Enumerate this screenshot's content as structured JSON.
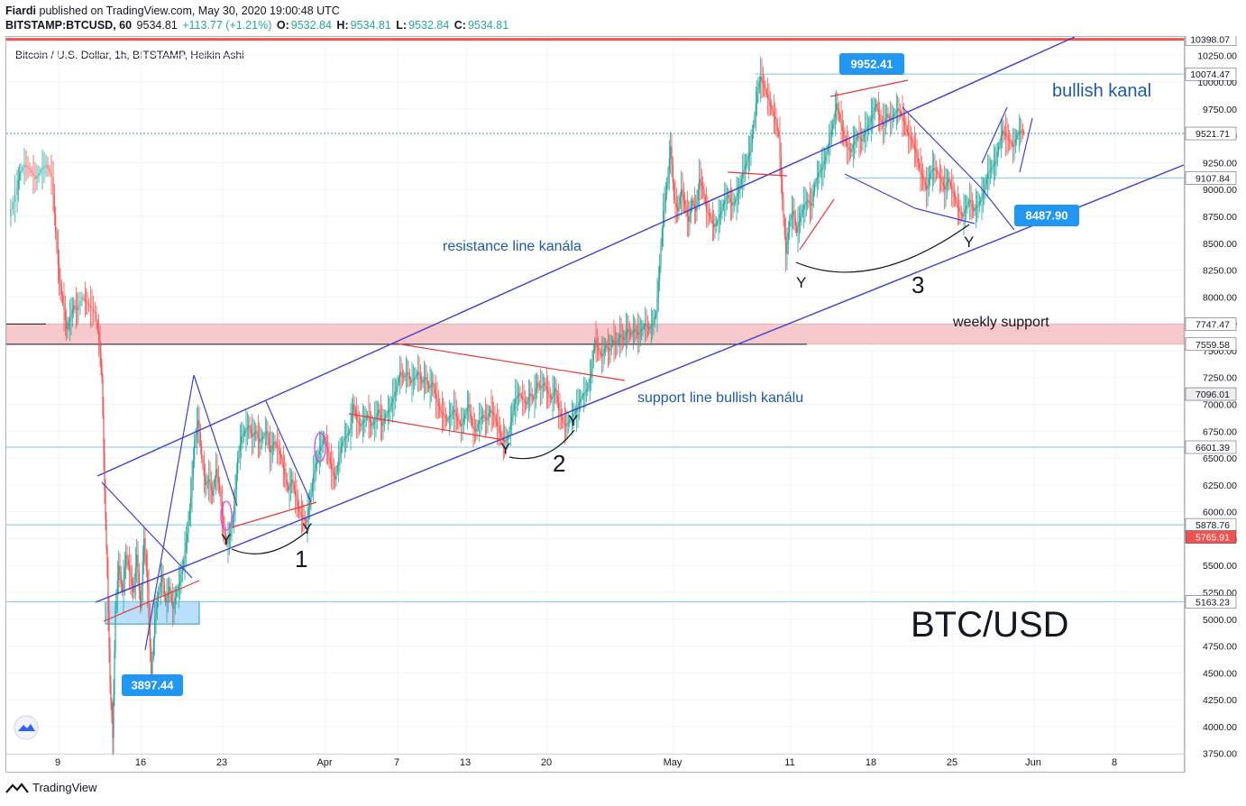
{
  "header": {
    "line1_author": "Fiardi",
    "line1_rest": "published on TradingView.com, May 30, 2020 19:00:48 UTC",
    "symbol": "BITSTAMP:BTCUSD, 60",
    "last": "9534.81",
    "change": "+113.77 (+1.21%)",
    "o_label": "O:",
    "o_val": "9532.84",
    "h_label": "H:",
    "h_val": "9534.81",
    "l_label": "L:",
    "l_val": "9532.84",
    "c_label": "C:",
    "c_val": "9534.81"
  },
  "chart_title": "Bitcoin / U.S. Dollar, 1h, BITSTAMP, Heikin Ashi",
  "footer_brand": "TradingView",
  "colors": {
    "up": "#26a69a",
    "down": "#ef5350",
    "channel": "#3f3fcf",
    "red_line": "#e53935",
    "price_blue": "#2196f3",
    "support_zone": "#f6c9cc",
    "demand_zone": "#bbdefb",
    "annot_text": "#1e5aa8",
    "magenta": "#e040fb"
  },
  "annotations": {
    "bullish": "bullish kanal",
    "resistance": "resistance line kanála",
    "support_line": "support line bullish kanálu",
    "weekly": "weekly support",
    "pair": "BTC/USD",
    "n1": "1",
    "n2": "2",
    "n3": "3",
    "y": "Y"
  },
  "chart_data": {
    "type": "line",
    "title": "Bitcoin / U.S. Dollar, 1h, BITSTAMP, Heikin Ashi",
    "xlabel": "",
    "ylabel": "",
    "ylim": [
      3580,
      10420
    ],
    "x_ticks": [
      "9",
      "16",
      "23",
      "Apr",
      "7",
      "13",
      "20",
      "May",
      "11",
      "18",
      "25",
      "Jun",
      "8"
    ],
    "y_ticks": [
      "10250.00",
      "10000.00",
      "9750.00",
      "9500.00",
      "9250.00",
      "9000.00",
      "8750.00",
      "8500.00",
      "8250.00",
      "8000.00",
      "7750.00",
      "7500.00",
      "7250.00",
      "7000.00",
      "6750.00",
      "6500.00",
      "6250.00",
      "6000.00",
      "5750.00",
      "5500.00",
      "5250.00",
      "5000.00",
      "4750.00",
      "4500.00",
      "4250.00",
      "4000.00",
      "3750.00"
    ],
    "price_labels": [
      {
        "value": "10398.07",
        "y": 10398.07,
        "bg": "#ffffff",
        "fg": "#131722"
      },
      {
        "value": "10074.47",
        "y": 10074.47,
        "bg": "#ffffff",
        "fg": "#131722"
      },
      {
        "value": "9521.71",
        "y": 9521.71,
        "bg": "#ffffff",
        "fg": "#131722"
      },
      {
        "value": "9107.84",
        "y": 9107.84,
        "bg": "#ffffff",
        "fg": "#131722"
      },
      {
        "value": "7747.47",
        "y": 7747.47,
        "bg": "#ffffff",
        "fg": "#131722"
      },
      {
        "value": "7559.58",
        "y": 7559.58,
        "bg": "#ffffff",
        "fg": "#131722"
      },
      {
        "value": "7096.01",
        "y": 7096.01,
        "bg": "#eeeeee",
        "fg": "#131722"
      },
      {
        "value": "6601.39",
        "y": 6601.39,
        "bg": "#ffffff",
        "fg": "#131722"
      },
      {
        "value": "5878.76",
        "y": 5878.76,
        "bg": "#ffffff",
        "fg": "#131722"
      },
      {
        "value": "5765.91",
        "y": 5765.91,
        "bg": "#ef5350",
        "fg": "#ffffff"
      },
      {
        "value": "5163.23",
        "y": 5163.23,
        "bg": "#ffffff",
        "fg": "#131722"
      }
    ],
    "callouts": [
      {
        "text": "9952.41",
        "y": 9952.41
      },
      {
        "text": "8487.90",
        "y": 8487.9
      },
      {
        "text": "3897.44",
        "y": 3897.44
      }
    ],
    "path_points": [
      [
        5,
        8750
      ],
      [
        12,
        8950
      ],
      [
        16,
        9150
      ],
      [
        22,
        9230
      ],
      [
        28,
        9180
      ],
      [
        34,
        9100
      ],
      [
        40,
        9180
      ],
      [
        46,
        9230
      ],
      [
        52,
        9120
      ],
      [
        56,
        8600
      ],
      [
        60,
        8150
      ],
      [
        64,
        7950
      ],
      [
        68,
        7700
      ],
      [
        72,
        7800
      ],
      [
        76,
        7920
      ],
      [
        80,
        7880
      ],
      [
        86,
        8000
      ],
      [
        90,
        7950
      ],
      [
        95,
        7900
      ],
      [
        100,
        7850
      ],
      [
        104,
        7600
      ],
      [
        107,
        7250
      ],
      [
        110,
        6200
      ],
      [
        113,
        5400
      ],
      [
        116,
        4400
      ],
      [
        119,
        3897
      ],
      [
        122,
        5100
      ],
      [
        126,
        5500
      ],
      [
        130,
        5250
      ],
      [
        134,
        5600
      ],
      [
        138,
        5450
      ],
      [
        142,
        5250
      ],
      [
        146,
        5600
      ],
      [
        150,
        5100
      ],
      [
        154,
        5750
      ],
      [
        158,
        5300
      ],
      [
        162,
        4450
      ],
      [
        166,
        5000
      ],
      [
        170,
        5250
      ],
      [
        174,
        5400
      ],
      [
        178,
        5150
      ],
      [
        182,
        5300
      ],
      [
        186,
        5100
      ],
      [
        190,
        5250
      ],
      [
        194,
        5350
      ],
      [
        198,
        5550
      ],
      [
        202,
        5800
      ],
      [
        206,
        6150
      ],
      [
        210,
        6650
      ],
      [
        214,
        6850
      ],
      [
        218,
        6500
      ],
      [
        222,
        6250
      ],
      [
        226,
        6300
      ],
      [
        230,
        6150
      ],
      [
        234,
        6400
      ],
      [
        238,
        6200
      ],
      [
        242,
        5850
      ],
      [
        246,
        5700
      ],
      [
        250,
        5800
      ],
      [
        254,
        6050
      ],
      [
        258,
        6500
      ],
      [
        262,
        6700
      ],
      [
        266,
        6750
      ],
      [
        270,
        6800
      ],
      [
        274,
        6700
      ],
      [
        278,
        6750
      ],
      [
        282,
        6650
      ],
      [
        286,
        6700
      ],
      [
        290,
        6750
      ],
      [
        294,
        6550
      ],
      [
        298,
        6650
      ],
      [
        302,
        6600
      ],
      [
        306,
        6500
      ],
      [
        310,
        6350
      ],
      [
        314,
        6200
      ],
      [
        318,
        6300
      ],
      [
        322,
        6150
      ],
      [
        326,
        6000
      ],
      [
        330,
        5950
      ],
      [
        334,
        5900
      ],
      [
        338,
        6100
      ],
      [
        342,
        6350
      ],
      [
        346,
        6500
      ],
      [
        350,
        6600
      ],
      [
        354,
        6700
      ],
      [
        358,
        6550
      ],
      [
        362,
        6400
      ],
      [
        366,
        6300
      ],
      [
        370,
        6500
      ],
      [
        374,
        6650
      ],
      [
        378,
        6700
      ],
      [
        382,
        6750
      ],
      [
        386,
        7000
      ],
      [
        390,
        6850
      ],
      [
        394,
        6800
      ],
      [
        398,
        6850
      ],
      [
        402,
        6900
      ],
      [
        406,
        6800
      ],
      [
        410,
        6850
      ],
      [
        414,
        6950
      ],
      [
        418,
        6800
      ],
      [
        422,
        6900
      ],
      [
        426,
        6950
      ],
      [
        430,
        7050
      ],
      [
        434,
        7150
      ],
      [
        438,
        7300
      ],
      [
        442,
        7250
      ],
      [
        446,
        7300
      ],
      [
        450,
        7200
      ],
      [
        454,
        7250
      ],
      [
        458,
        7300
      ],
      [
        462,
        7200
      ],
      [
        466,
        7250
      ],
      [
        470,
        7150
      ],
      [
        474,
        7200
      ],
      [
        478,
        7050
      ],
      [
        482,
        6950
      ],
      [
        486,
        6900
      ],
      [
        490,
        6850
      ],
      [
        494,
        6900
      ],
      [
        498,
        6950
      ],
      [
        502,
        6850
      ],
      [
        506,
        6800
      ],
      [
        510,
        6900
      ],
      [
        514,
        7000
      ],
      [
        518,
        6800
      ],
      [
        522,
        6750
      ],
      [
        526,
        6850
      ],
      [
        530,
        6900
      ],
      [
        534,
        6850
      ],
      [
        538,
        6950
      ],
      [
        542,
        6900
      ],
      [
        546,
        6800
      ],
      [
        550,
        6700
      ],
      [
        554,
        6650
      ],
      [
        558,
        6700
      ],
      [
        562,
        6900
      ],
      [
        566,
        7050
      ],
      [
        570,
        7100
      ],
      [
        574,
        7050
      ],
      [
        578,
        7000
      ],
      [
        582,
        7100
      ],
      [
        586,
        7050
      ],
      [
        590,
        7200
      ],
      [
        594,
        7150
      ],
      [
        598,
        7200
      ],
      [
        602,
        7100
      ],
      [
        606,
        7050
      ],
      [
        610,
        7150
      ],
      [
        614,
        6950
      ],
      [
        618,
        6850
      ],
      [
        622,
        6800
      ],
      [
        626,
        6850
      ],
      [
        630,
        6900
      ],
      [
        634,
        6950
      ],
      [
        638,
        7050
      ],
      [
        642,
        7100
      ],
      [
        646,
        7150
      ],
      [
        650,
        7300
      ],
      [
        654,
        7600
      ],
      [
        658,
        7500
      ],
      [
        662,
        7450
      ],
      [
        666,
        7550
      ],
      [
        670,
        7500
      ],
      [
        674,
        7600
      ],
      [
        678,
        7550
      ],
      [
        682,
        7650
      ],
      [
        686,
        7600
      ],
      [
        690,
        7700
      ],
      [
        694,
        7650
      ],
      [
        698,
        7700
      ],
      [
        702,
        7650
      ],
      [
        706,
        7700
      ],
      [
        710,
        7750
      ],
      [
        714,
        7700
      ],
      [
        718,
        7750
      ],
      [
        722,
        7850
      ],
      [
        726,
        8300
      ],
      [
        730,
        8800
      ],
      [
        734,
        9050
      ],
      [
        738,
        9400
      ],
      [
        742,
        8900
      ],
      [
        746,
        8800
      ],
      [
        750,
        9000
      ],
      [
        754,
        8850
      ],
      [
        758,
        8700
      ],
      [
        762,
        8900
      ],
      [
        766,
        8800
      ],
      [
        770,
        9100
      ],
      [
        774,
        9000
      ],
      [
        778,
        8800
      ],
      [
        782,
        8750
      ],
      [
        786,
        8650
      ],
      [
        790,
        8700
      ],
      [
        794,
        8800
      ],
      [
        798,
        8900
      ],
      [
        802,
        8950
      ],
      [
        806,
        8850
      ],
      [
        810,
        8900
      ],
      [
        814,
        9000
      ],
      [
        818,
        9150
      ],
      [
        822,
        9250
      ],
      [
        826,
        9350
      ],
      [
        830,
        9600
      ],
      [
        834,
        9900
      ],
      [
        838,
        10050
      ],
      [
        842,
        9950
      ],
      [
        846,
        9850
      ],
      [
        850,
        9750
      ],
      [
        854,
        9650
      ],
      [
        858,
        9500
      ],
      [
        862,
        8900
      ],
      [
        866,
        8400
      ],
      [
        870,
        8700
      ],
      [
        874,
        8800
      ],
      [
        878,
        8600
      ],
      [
        882,
        8750
      ],
      [
        886,
        8850
      ],
      [
        890,
        8900
      ],
      [
        894,
        8850
      ],
      [
        898,
        9050
      ],
      [
        902,
        9150
      ],
      [
        906,
        9200
      ],
      [
        910,
        9300
      ],
      [
        914,
        9450
      ],
      [
        918,
        9600
      ],
      [
        922,
        9800
      ],
      [
        926,
        9650
      ],
      [
        930,
        9500
      ],
      [
        934,
        9400
      ],
      [
        938,
        9350
      ],
      [
        942,
        9450
      ],
      [
        946,
        9500
      ],
      [
        950,
        9450
      ],
      [
        954,
        9550
      ],
      [
        958,
        9600
      ],
      [
        962,
        9700
      ],
      [
        966,
        9800
      ],
      [
        970,
        9650
      ],
      [
        974,
        9600
      ],
      [
        978,
        9700
      ],
      [
        982,
        9650
      ],
      [
        986,
        9700
      ],
      [
        990,
        9750
      ],
      [
        994,
        9700
      ],
      [
        998,
        9600
      ],
      [
        1002,
        9500
      ],
      [
        1006,
        9450
      ],
      [
        1010,
        9350
      ],
      [
        1014,
        9200
      ],
      [
        1018,
        9100
      ],
      [
        1022,
        9000
      ],
      [
        1026,
        9150
      ],
      [
        1030,
        9200
      ],
      [
        1034,
        9150
      ],
      [
        1038,
        9100
      ],
      [
        1042,
        9000
      ],
      [
        1046,
        9100
      ],
      [
        1050,
        9000
      ],
      [
        1054,
        8900
      ],
      [
        1058,
        8800
      ],
      [
        1062,
        8750
      ],
      [
        1066,
        8850
      ],
      [
        1070,
        8900
      ],
      [
        1074,
        8800
      ],
      [
        1078,
        8850
      ],
      [
        1082,
        8900
      ],
      [
        1086,
        9000
      ],
      [
        1090,
        9150
      ],
      [
        1094,
        9200
      ],
      [
        1098,
        9250
      ],
      [
        1102,
        9400
      ],
      [
        1106,
        9550
      ],
      [
        1110,
        9500
      ],
      [
        1114,
        9450
      ],
      [
        1118,
        9400
      ],
      [
        1122,
        9500
      ],
      [
        1126,
        9550
      ],
      [
        1130,
        9530
      ]
    ]
  }
}
